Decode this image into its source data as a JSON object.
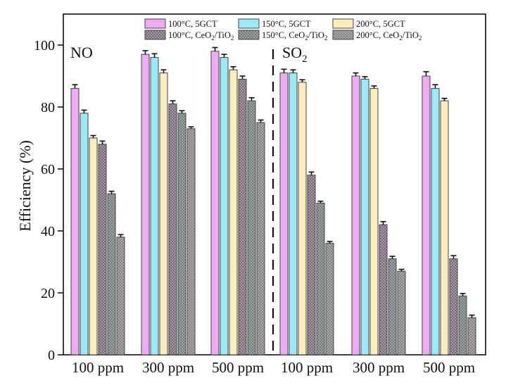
{
  "chart_data": {
    "type": "bar",
    "title": "",
    "xlabel": "",
    "ylabel": "Efficiency (%)",
    "ylim": [
      0,
      110
    ],
    "yticks": [
      0,
      20,
      40,
      60,
      80,
      100
    ],
    "grid": false,
    "legend_position": "top",
    "categories": [
      "100 ppm",
      "300 ppm",
      "500 ppm",
      "100 ppm",
      "300 ppm",
      "500 ppm"
    ],
    "panels": [
      {
        "label": "NO",
        "sub": "",
        "categories_index": [
          0,
          1,
          2
        ]
      },
      {
        "label": "SO",
        "sub": "2",
        "categories_index": [
          3,
          4,
          5
        ]
      }
    ],
    "divider": "dashed line between NO and SO2 groups",
    "error_bars": true,
    "series": [
      {
        "name": "100°C, 5GCT",
        "name_main": "100°C, 5GCT",
        "name_sub": "",
        "name_tail": "",
        "color": "#eeaaf2",
        "pattern": "solid",
        "values": [
          86,
          97,
          98,
          91,
          90,
          90
        ],
        "errors": [
          1.2,
          1.2,
          1.2,
          1.2,
          1.0,
          1.4
        ]
      },
      {
        "name": "150°C, 5GCT",
        "name_main": "150°C, 5GCT",
        "name_sub": "",
        "name_tail": "",
        "color": "#9ceaf8",
        "pattern": "solid",
        "values": [
          78,
          96,
          96,
          91,
          89,
          86
        ],
        "errors": [
          1.0,
          1.2,
          1.0,
          1.0,
          0.8,
          1.2
        ]
      },
      {
        "name": "200°C, 5GCT",
        "name_main": "200°C, 5GCT",
        "name_sub": "",
        "name_tail": "",
        "color": "#fdecbc",
        "pattern": "solid",
        "values": [
          70,
          91,
          92,
          88,
          86,
          82
        ],
        "errors": [
          0.8,
          1.0,
          1.0,
          0.8,
          0.8,
          0.8
        ]
      },
      {
        "name": "100°C, CeO2/TiO2",
        "name_main": "100°C, CeO",
        "name_sub": "2",
        "name_tail": "/TiO",
        "color": "#7a6a78",
        "pattern": "checker",
        "values": [
          68,
          81,
          89,
          58,
          42,
          31
        ],
        "errors": [
          1.0,
          1.0,
          1.0,
          1.0,
          1.0,
          1.0
        ]
      },
      {
        "name": "150°C, CeO2/TiO2",
        "name_main": "150°C, CeO",
        "name_sub": "2",
        "name_tail": "/TiO",
        "color": "#6e7c7a",
        "pattern": "checker",
        "values": [
          52,
          78,
          82,
          49,
          31,
          19
        ],
        "errors": [
          0.8,
          0.8,
          1.0,
          0.6,
          0.8,
          0.8
        ]
      },
      {
        "name": "200°C, CeO2/TiO2",
        "name_main": "200°C, CeO",
        "name_sub": "2",
        "name_tail": "/TiO",
        "color": "#858585",
        "pattern": "checker",
        "values": [
          38,
          73,
          75,
          36,
          27,
          12
        ],
        "errors": [
          0.8,
          0.6,
          0.8,
          0.6,
          0.6,
          0.8
        ]
      }
    ]
  }
}
